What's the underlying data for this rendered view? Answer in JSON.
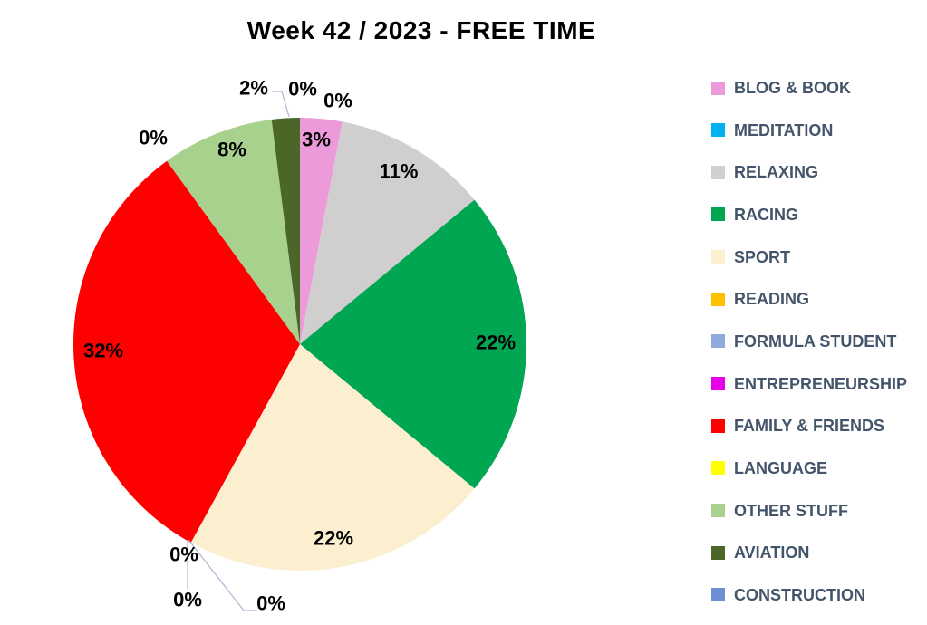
{
  "chart_data": {
    "type": "pie",
    "title": "Week 42 / 2023 - FREE TIME",
    "total_percent": 100,
    "start_angle": "12-oclock",
    "direction": "clockwise",
    "legend_position": "right",
    "background": "#FFFFFF",
    "title_color": "#000000",
    "label_color": "#000000",
    "legend_text_color": "#44546A",
    "leader_line_color": "#A9B7CE",
    "slices": [
      {
        "category": "BLOG & BOOK",
        "value": 3,
        "label": "3%",
        "color": "#EC9ADA"
      },
      {
        "category": "MEDITATION",
        "value": 0,
        "label": "0%",
        "color": "#00B0F0"
      },
      {
        "category": "RELAXING",
        "value": 11,
        "label": "11%",
        "color": "#D0CECE"
      },
      {
        "category": "RACING",
        "value": 22,
        "label": "22%",
        "color": "#00A651"
      },
      {
        "category": "SPORT",
        "value": 22,
        "label": "22%",
        "color": "#FCEFD0"
      },
      {
        "category": "READING",
        "value": 0,
        "label": "0%",
        "color": "#FFC000"
      },
      {
        "category": "FORMULA STUDENT",
        "value": 0,
        "label": "0%",
        "color": "#8FAADC"
      },
      {
        "category": "ENTREPRENEURSHIP",
        "value": 0,
        "label": "0%",
        "color": "#E800E6"
      },
      {
        "category": "FAMILY & FRIENDS",
        "value": 32,
        "label": "32%",
        "color": "#FF0000"
      },
      {
        "category": "LANGUAGE",
        "value": 0,
        "label": "0%",
        "color": "#FFFF00"
      },
      {
        "category": "OTHER STUFF",
        "value": 8,
        "label": "8%",
        "color": "#A9D18E"
      },
      {
        "category": "AVIATION",
        "value": 2,
        "label": "2%",
        "color": "#4A6728"
      },
      {
        "category": "CONSTRUCTION",
        "value": 0,
        "label": "0%",
        "color": "#6C8FD3"
      }
    ]
  }
}
